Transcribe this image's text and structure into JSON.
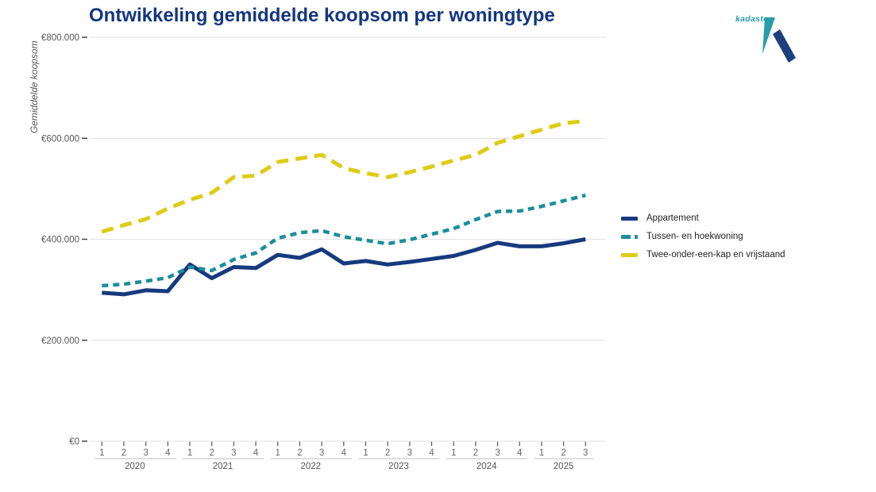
{
  "title": "Ontwikkeling gemiddelde koopsom per woningtype",
  "logo": {
    "text": "kadaster"
  },
  "colors": {
    "title": "#14367e",
    "axis_text": "#555555",
    "tick_label": "#666666",
    "grid": "#e0e0e0",
    "tick_mark": "#555555",
    "year_underline": "#bfbfbf",
    "logo_teal": "#2a9daa",
    "logo_blue": "#1c3f7e"
  },
  "chart_data": {
    "type": "line",
    "title": "Ontwikkeling gemiddelde koopsom per woningtype",
    "xlabel": "",
    "ylabel": "Gemiddelde koopsom",
    "ylim": [
      0,
      800000
    ],
    "grid": true,
    "legend_position": "right",
    "y_ticks": [
      0,
      200000,
      400000,
      600000,
      800000
    ],
    "y_tick_labels": [
      "€0",
      "€200.000",
      "€400.000",
      "€600.000",
      "€800.000"
    ],
    "x_groups": [
      {
        "year": "2020",
        "quarters": [
          "1",
          "2",
          "3",
          "4"
        ]
      },
      {
        "year": "2021",
        "quarters": [
          "1",
          "2",
          "3",
          "4"
        ]
      },
      {
        "year": "2022",
        "quarters": [
          "1",
          "2",
          "3",
          "4"
        ]
      },
      {
        "year": "2023",
        "quarters": [
          "1",
          "2",
          "3",
          "4"
        ]
      },
      {
        "year": "2024",
        "quarters": [
          "1",
          "2",
          "3",
          "4"
        ]
      },
      {
        "year": "2025",
        "quarters": [
          "1",
          "2",
          "3"
        ]
      }
    ],
    "series": [
      {
        "name": "Appartement",
        "color": "#163a7d",
        "dash": "solid",
        "values": [
          294000,
          291000,
          299000,
          297000,
          350000,
          323000,
          345000,
          343000,
          369000,
          363000,
          380000,
          352000,
          357000,
          350000,
          355000,
          361000,
          367000,
          379000,
          393000,
          386000,
          386000,
          392000,
          400000
        ]
      },
      {
        "name": "Tussen- en hoekwoning",
        "color": "#1b8e9b",
        "dash": "dashed",
        "values": [
          308000,
          311000,
          317000,
          324000,
          345000,
          338000,
          360000,
          373000,
          402000,
          413000,
          417000,
          405000,
          398000,
          391000,
          399000,
          410000,
          421000,
          439000,
          455000,
          456000,
          465000,
          476000,
          487000
        ]
      },
      {
        "name": "Twee-onder-een-kap en vrijstaand",
        "color": "#ddcc15",
        "dash": "long-dash",
        "values": [
          415000,
          428000,
          440000,
          461000,
          478000,
          492000,
          523000,
          526000,
          553000,
          560000,
          567000,
          541000,
          531000,
          523000,
          533000,
          544000,
          556000,
          567000,
          591000,
          604000,
          617000,
          630000,
          634000
        ]
      }
    ]
  }
}
